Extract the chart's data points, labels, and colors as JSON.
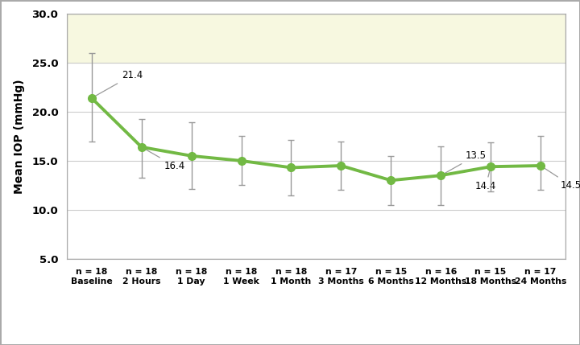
{
  "x_labels": [
    "Baseline",
    "2 Hours",
    "1 Day",
    "1 Week",
    "1 Month",
    "3 Months",
    "6 Months",
    "12 Months",
    "18 Months",
    "24 Months"
  ],
  "n_labels": [
    "n = 18",
    "n = 18",
    "n = 18",
    "n = 18",
    "n = 18",
    "n = 17",
    "n = 15",
    "n = 16",
    "n = 15",
    "n = 17"
  ],
  "y_values": [
    21.4,
    16.4,
    15.5,
    15.0,
    14.3,
    14.5,
    13.0,
    13.5,
    14.4,
    14.5
  ],
  "y_err_upper": [
    4.6,
    2.9,
    3.4,
    2.5,
    2.8,
    2.5,
    2.5,
    3.0,
    2.5,
    3.0
  ],
  "y_err_lower": [
    4.4,
    3.1,
    3.4,
    2.5,
    2.8,
    2.5,
    2.5,
    3.0,
    2.5,
    2.5
  ],
  "line_color": "#72b944",
  "marker_color": "#72b944",
  "error_color": "#999999",
  "annotation_arrow_color": "#999999",
  "bg_upper_color": "#f7f8e0",
  "bg_lower_color": "#ffffff",
  "ylabel": "Mean IOP (mmHg)",
  "ylim": [
    5.0,
    30.0
  ],
  "yticks": [
    5.0,
    10.0,
    15.0,
    20.0,
    25.0,
    30.0
  ],
  "bg_threshold": 25.0,
  "line_width": 2.8,
  "marker_size": 7,
  "capsize": 3,
  "grid_color": "#cccccc",
  "fig_border_color": "#aaaaaa"
}
